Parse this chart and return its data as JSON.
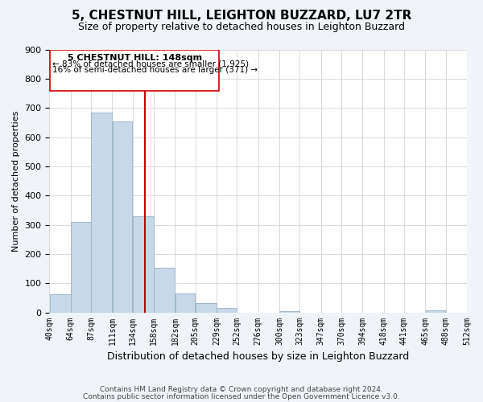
{
  "title": "5, CHESTNUT HILL, LEIGHTON BUZZARD, LU7 2TR",
  "subtitle": "Size of property relative to detached houses in Leighton Buzzard",
  "xlabel": "Distribution of detached houses by size in Leighton Buzzard",
  "ylabel": "Number of detached properties",
  "bar_color": "#c8d8e8",
  "bar_edge_color": "#a0b8cc",
  "marker_line_color": "#cc0000",
  "marker_value": 148,
  "annotation_title": "5 CHESTNUT HILL: 148sqm",
  "annotation_line1": "← 83% of detached houses are smaller (1,925)",
  "annotation_line2": "16% of semi-detached houses are larger (371) →",
  "bin_edges": [
    40,
    64,
    87,
    111,
    134,
    158,
    182,
    205,
    229,
    252,
    276,
    300,
    323,
    347,
    370,
    394,
    418,
    441,
    465,
    488,
    512
  ],
  "bin_labels": [
    "40sqm",
    "64sqm",
    "87sqm",
    "111sqm",
    "134sqm",
    "158sqm",
    "182sqm",
    "205sqm",
    "229sqm",
    "252sqm",
    "276sqm",
    "300sqm",
    "323sqm",
    "347sqm",
    "370sqm",
    "394sqm",
    "418sqm",
    "441sqm",
    "465sqm",
    "488sqm",
    "512sqm"
  ],
  "counts": [
    63,
    310,
    685,
    653,
    330,
    152,
    65,
    33,
    14,
    0,
    0,
    5,
    0,
    0,
    0,
    0,
    0,
    0,
    6,
    0
  ],
  "ylim": [
    0,
    900
  ],
  "yticks": [
    0,
    100,
    200,
    300,
    400,
    500,
    600,
    700,
    800,
    900
  ],
  "footnote1": "Contains HM Land Registry data © Crown copyright and database right 2024.",
  "footnote2": "Contains public sector information licensed under the Open Government Licence v3.0.",
  "background_color": "#f0f4f8",
  "plot_bg_color": "#ffffff"
}
